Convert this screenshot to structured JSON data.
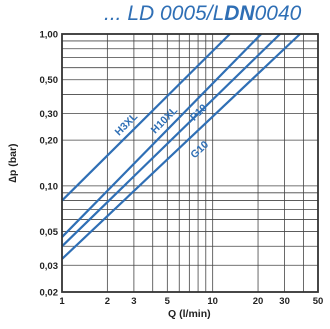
{
  "header": {
    "part1": "... LD 0005/L",
    "part2": "DN",
    "part3": "0040"
  },
  "chart_data": {
    "type": "line",
    "title": "... LD 0005/LDN0040",
    "xlabel": "Q (l/min)",
    "ylabel": "∆p (bar)",
    "x_scale": "log",
    "y_scale": "log",
    "xlim": [
      1,
      50
    ],
    "ylim": [
      0.02,
      1.0
    ],
    "grid": true,
    "x_ticks": [
      {
        "value": 1,
        "label": "1"
      },
      {
        "value": 2,
        "label": "2"
      },
      {
        "value": 3,
        "label": "3"
      },
      {
        "value": 5,
        "label": "5"
      },
      {
        "value": 10,
        "label": "10"
      },
      {
        "value": 20,
        "label": "20"
      },
      {
        "value": 30,
        "label": "30"
      },
      {
        "value": 50,
        "label": "50"
      }
    ],
    "y_ticks": [
      {
        "value": 0.02,
        "label": "0,02"
      },
      {
        "value": 0.03,
        "label": "0,03"
      },
      {
        "value": 0.05,
        "label": "0,05"
      },
      {
        "value": 0.1,
        "label": "0,10"
      },
      {
        "value": 0.2,
        "label": "0,20"
      },
      {
        "value": 0.3,
        "label": "0,30"
      },
      {
        "value": 0.5,
        "label": "0,50"
      },
      {
        "value": 1.0,
        "label": "1,00"
      }
    ],
    "series": [
      {
        "name": "H3XL",
        "x": [
          1,
          13
        ],
        "y": [
          0.08,
          1.0
        ]
      },
      {
        "name": "H10XL",
        "x": [
          1,
          21
        ],
        "y": [
          0.046,
          1.0
        ]
      },
      {
        "name": "P10",
        "x": [
          1,
          28
        ],
        "y": [
          0.04,
          1.0
        ]
      },
      {
        "name": "G10",
        "x": [
          1,
          38
        ],
        "y": [
          0.033,
          1.0
        ]
      }
    ],
    "colors": {
      "line": "#2f6fb5",
      "grid": "#444444",
      "text": "#222222"
    }
  }
}
